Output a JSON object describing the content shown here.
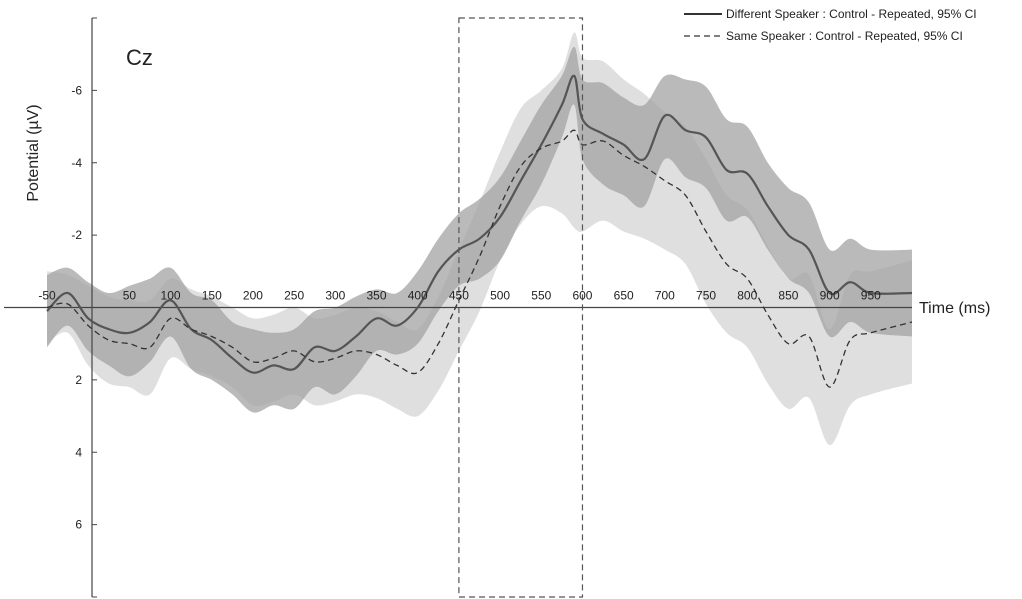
{
  "chart_data": {
    "type": "line",
    "title": "Cz",
    "xlabel": "Time (ms)",
    "ylabel": "Potential (µV)",
    "xlim": [
      -50,
      1000
    ],
    "ylim": [
      8,
      -8
    ],
    "y_inverted": true,
    "x_ticks": [
      -50,
      50,
      100,
      150,
      200,
      250,
      300,
      350,
      400,
      450,
      500,
      550,
      600,
      650,
      700,
      750,
      800,
      850,
      900,
      950
    ],
    "x_tick_labels": [
      "-50",
      "50",
      "100",
      "150",
      "200",
      "250",
      "300",
      "350",
      "400",
      "450",
      "500",
      "550",
      "600",
      "650",
      "700",
      "750",
      "800",
      "850",
      "900",
      "950"
    ],
    "y_ticks": [
      -6,
      -4,
      -2,
      2,
      4,
      6
    ],
    "y_tick_labels": [
      "-6",
      "-4",
      "-2",
      "2",
      "4",
      "6"
    ],
    "legend_position": "top-right",
    "highlight_window": {
      "x_start": 450,
      "x_end": 600,
      "style": "dashed"
    },
    "series": [
      {
        "name": "Different Speaker : Control - Repeated, 95% CI",
        "line_style": "solid",
        "color": "#555555",
        "band_color": "#a3a3a3",
        "x": [
          -50,
          -25,
          0,
          25,
          50,
          75,
          100,
          125,
          150,
          175,
          200,
          225,
          250,
          275,
          300,
          325,
          350,
          375,
          400,
          425,
          450,
          475,
          500,
          525,
          550,
          575,
          590,
          600,
          625,
          650,
          675,
          700,
          725,
          750,
          775,
          800,
          825,
          850,
          875,
          900,
          925,
          950,
          1000
        ],
        "mean": [
          0.1,
          -0.4,
          0.3,
          0.6,
          0.7,
          0.4,
          -0.2,
          0.6,
          0.9,
          1.4,
          1.8,
          1.6,
          1.7,
          1.1,
          1.2,
          0.8,
          0.3,
          0.5,
          0.0,
          -1.0,
          -1.6,
          -1.9,
          -2.5,
          -3.5,
          -4.5,
          -5.6,
          -6.4,
          -5.2,
          -4.8,
          -4.5,
          -4.1,
          -5.3,
          -4.9,
          -4.7,
          -3.8,
          -3.7,
          -2.8,
          -2.0,
          -1.6,
          -0.4,
          -0.7,
          -0.4,
          -0.4
        ],
        "ci_low": [
          -0.9,
          -1.1,
          -0.7,
          -0.4,
          -0.6,
          -0.8,
          -1.1,
          -0.4,
          -0.2,
          0.4,
          0.6,
          0.7,
          0.6,
          0.1,
          0.0,
          -0.3,
          -0.5,
          -0.4,
          -1.0,
          -1.9,
          -2.6,
          -3.0,
          -3.6,
          -4.6,
          -5.6,
          -6.4,
          -7.2,
          -6.3,
          -6.2,
          -5.8,
          -5.6,
          -6.4,
          -6.3,
          -6.1,
          -5.2,
          -5.0,
          -4.0,
          -3.3,
          -2.9,
          -1.6,
          -1.9,
          -1.6,
          -1.6
        ],
        "ci_high": [
          1.1,
          0.5,
          1.2,
          1.6,
          1.9,
          1.5,
          0.8,
          1.7,
          2.0,
          2.4,
          2.9,
          2.7,
          2.8,
          2.2,
          2.4,
          1.9,
          1.2,
          1.3,
          1.0,
          0.1,
          -0.6,
          -0.8,
          -1.3,
          -2.4,
          -3.4,
          -4.7,
          -5.6,
          -4.1,
          -3.4,
          -3.1,
          -2.8,
          -4.1,
          -3.6,
          -3.3,
          -2.4,
          -2.5,
          -1.6,
          -0.8,
          -0.4,
          0.8,
          0.4,
          0.7,
          0.8
        ]
      },
      {
        "name": "Same Speaker : Control - Repeated, 95% CI",
        "line_style": "dashed",
        "color": "#333333",
        "band_color": "#d9d9d9",
        "x": [
          -50,
          -25,
          0,
          25,
          50,
          75,
          100,
          125,
          150,
          175,
          200,
          225,
          250,
          275,
          300,
          325,
          350,
          375,
          400,
          425,
          450,
          475,
          500,
          525,
          550,
          575,
          590,
          600,
          625,
          650,
          675,
          700,
          725,
          750,
          775,
          800,
          825,
          850,
          875,
          900,
          925,
          950,
          1000
        ],
        "mean": [
          0.0,
          -0.1,
          0.5,
          0.9,
          1.0,
          1.1,
          0.3,
          0.6,
          0.8,
          1.1,
          1.5,
          1.4,
          1.2,
          1.5,
          1.4,
          1.2,
          1.3,
          1.6,
          1.8,
          1.0,
          -0.2,
          -1.4,
          -2.8,
          -3.9,
          -4.4,
          -4.6,
          -4.9,
          -4.5,
          -4.6,
          -4.2,
          -3.9,
          -3.5,
          -3.1,
          -2.1,
          -1.2,
          -0.8,
          0.2,
          1.0,
          0.8,
          2.2,
          0.9,
          0.7,
          0.4
        ],
        "ci_low": [
          -1.0,
          -0.9,
          -0.6,
          -0.3,
          -0.2,
          -0.2,
          -0.8,
          -0.5,
          -0.3,
          0.0,
          0.3,
          0.2,
          0.0,
          0.3,
          0.2,
          0.0,
          0.1,
          0.4,
          0.6,
          -0.3,
          -1.6,
          -2.9,
          -4.3,
          -5.5,
          -6.0,
          -6.6,
          -7.6,
          -6.9,
          -6.8,
          -6.3,
          -5.9,
          -5.4,
          -5.0,
          -4.1,
          -3.1,
          -2.7,
          -1.7,
          -0.8,
          -0.9,
          0.6,
          -0.9,
          -1.0,
          -1.3
        ],
        "ci_high": [
          1.0,
          0.7,
          1.6,
          2.1,
          2.2,
          2.4,
          1.4,
          1.7,
          1.9,
          2.2,
          2.7,
          2.6,
          2.4,
          2.7,
          2.6,
          2.4,
          2.5,
          2.8,
          3.0,
          2.3,
          1.2,
          0.1,
          -1.3,
          -2.3,
          -2.8,
          -2.6,
          -2.2,
          -2.1,
          -2.4,
          -2.1,
          -1.9,
          -1.6,
          -1.2,
          -0.1,
          0.7,
          1.1,
          2.1,
          2.8,
          2.5,
          3.8,
          2.7,
          2.4,
          2.1
        ]
      }
    ]
  }
}
